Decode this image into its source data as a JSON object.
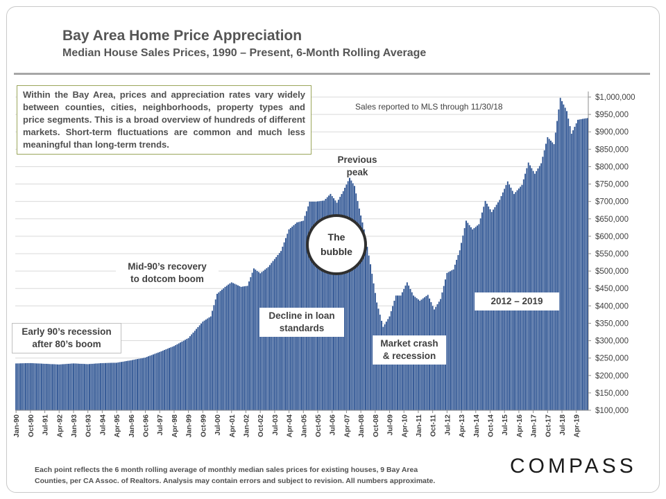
{
  "header": {
    "title": "Bay Area Home Price Appreciation",
    "subtitle": "Median House Sales Prices, 1990 – Present, 6-Month Rolling Average"
  },
  "info_box": "Within the Bay Area, prices and appreciation rates vary widely between counties, cities, neighborhoods, property types and price segments. This is a broad overview of hundreds of different markets. Short-term fluctuations are common and much less meaningful than long-term trends.",
  "sales_note": "Sales reported to MLS through 11/30/18",
  "annotations": {
    "early90s": [
      "Early 90’s recession",
      "after 80’s boom"
    ],
    "mid90s": [
      "Mid-90’s recovery",
      "to dotcom boom"
    ],
    "decline": [
      "Decline in loan",
      "standards"
    ],
    "previous_peak": [
      "Previous",
      "peak"
    ],
    "bubble": [
      "The",
      "bubble"
    ],
    "crash": [
      "Market crash",
      "& recession"
    ],
    "recent": "2012 – 2019"
  },
  "footnote": {
    "line1": "Each point reflects the 6 month rolling average of monthly median sales prices for existing houses, 9 Bay Area",
    "line2": "Counties, per CA Assoc. of Realtors. Analysis may contain errors and subject to revision. All numbers approximate."
  },
  "logo": "COMPASS",
  "colors": {
    "bar": "#2f5593",
    "bar_edge": "#ffffff",
    "grid": "#d9d9d9",
    "text": "#505050"
  },
  "chart_data": {
    "type": "bar",
    "title": "",
    "xlabel": "",
    "ylabel": "",
    "ylim": [
      100000,
      1000000
    ],
    "y_ticks": [
      "$100,000",
      "$150,000",
      "$200,000",
      "$250,000",
      "$300,000",
      "$350,000",
      "$400,000",
      "$450,000",
      "$500,000",
      "$550,000",
      "$600,000",
      "$650,000",
      "$700,000",
      "$750,000",
      "$800,000",
      "$850,000",
      "$900,000",
      "$950,000",
      "$1,000,000"
    ],
    "y_tick_values": [
      100000,
      150000,
      200000,
      250000,
      300000,
      350000,
      400000,
      450000,
      500000,
      550000,
      600000,
      650000,
      700000,
      750000,
      800000,
      850000,
      900000,
      950000,
      1000000
    ],
    "x_tick_labels": [
      "Jan-90",
      "Oct-90",
      "Jul-91",
      "Apr-92",
      "Jan-93",
      "Oct-93",
      "Jul-94",
      "Apr-95",
      "Jan-96",
      "Oct-96",
      "Jul-97",
      "Apr-98",
      "Jan-99",
      "Oct-99",
      "Jul-00",
      "Apr-01",
      "Jan-02",
      "Oct-02",
      "Jul-03",
      "Apr-04",
      "Jan-05",
      "Oct-05",
      "Jul-06",
      "Apr-07",
      "Jan-08",
      "Oct-08",
      "Jul-09",
      "Apr-10",
      "Jan-11",
      "Oct-11",
      "Jul-12",
      "Apr-13",
      "Jan-14",
      "Oct-14",
      "Jul-15",
      "Apr-16",
      "Jan-17",
      "Oct-17",
      "Jul-18",
      "Apr-19"
    ],
    "grid": true,
    "x_start": "1990-01",
    "x_end": "2019-11",
    "monthly_keypoints": [
      [
        "1990-01",
        235000
      ],
      [
        "1990-10",
        236000
      ],
      [
        "1991-07",
        234000
      ],
      [
        "1992-04",
        232000
      ],
      [
        "1993-01",
        235000
      ],
      [
        "1993-10",
        233000
      ],
      [
        "1994-07",
        236000
      ],
      [
        "1995-04",
        237000
      ],
      [
        "1996-01",
        244000
      ],
      [
        "1996-10",
        252000
      ],
      [
        "1997-07",
        268000
      ],
      [
        "1998-04",
        285000
      ],
      [
        "1999-01",
        308000
      ],
      [
        "1999-10",
        355000
      ],
      [
        "2000-03",
        370000
      ],
      [
        "2000-07",
        435000
      ],
      [
        "2000-12",
        455000
      ],
      [
        "2001-04",
        468000
      ],
      [
        "2001-10",
        455000
      ],
      [
        "2002-02",
        458000
      ],
      [
        "2002-06",
        508000
      ],
      [
        "2002-10",
        494000
      ],
      [
        "2003-03",
        512000
      ],
      [
        "2003-07",
        535000
      ],
      [
        "2003-11",
        558000
      ],
      [
        "2004-04",
        620000
      ],
      [
        "2004-09",
        640000
      ],
      [
        "2005-01",
        645000
      ],
      [
        "2005-05",
        700000
      ],
      [
        "2005-09",
        700000
      ],
      [
        "2006-02",
        703000
      ],
      [
        "2006-06",
        722000
      ],
      [
        "2006-10",
        697000
      ],
      [
        "2007-02",
        730000
      ],
      [
        "2007-06",
        768000
      ],
      [
        "2007-09",
        745000
      ],
      [
        "2007-12",
        680000
      ],
      [
        "2008-03",
        620000
      ],
      [
        "2008-07",
        520000
      ],
      [
        "2008-11",
        410000
      ],
      [
        "2009-03",
        340000
      ],
      [
        "2009-07",
        370000
      ],
      [
        "2009-11",
        430000
      ],
      [
        "2010-02",
        430000
      ],
      [
        "2010-06",
        468000
      ],
      [
        "2010-10",
        430000
      ],
      [
        "2011-02",
        415000
      ],
      [
        "2011-07",
        432000
      ],
      [
        "2011-11",
        390000
      ],
      [
        "2012-03",
        420000
      ],
      [
        "2012-07",
        495000
      ],
      [
        "2012-11",
        505000
      ],
      [
        "2013-03",
        560000
      ],
      [
        "2013-07",
        645000
      ],
      [
        "2013-11",
        620000
      ],
      [
        "2014-03",
        635000
      ],
      [
        "2014-07",
        702000
      ],
      [
        "2014-11",
        670000
      ],
      [
        "2015-04",
        705000
      ],
      [
        "2015-09",
        758000
      ],
      [
        "2016-01",
        722000
      ],
      [
        "2016-06",
        748000
      ],
      [
        "2016-10",
        812000
      ],
      [
        "2017-02",
        780000
      ],
      [
        "2017-06",
        810000
      ],
      [
        "2017-10",
        885000
      ],
      [
        "2018-02",
        865000
      ],
      [
        "2018-06",
        998000
      ],
      [
        "2018-10",
        960000
      ],
      [
        "2019-01",
        895000
      ],
      [
        "2019-05",
        935000
      ],
      [
        "2019-11",
        940000
      ]
    ]
  }
}
